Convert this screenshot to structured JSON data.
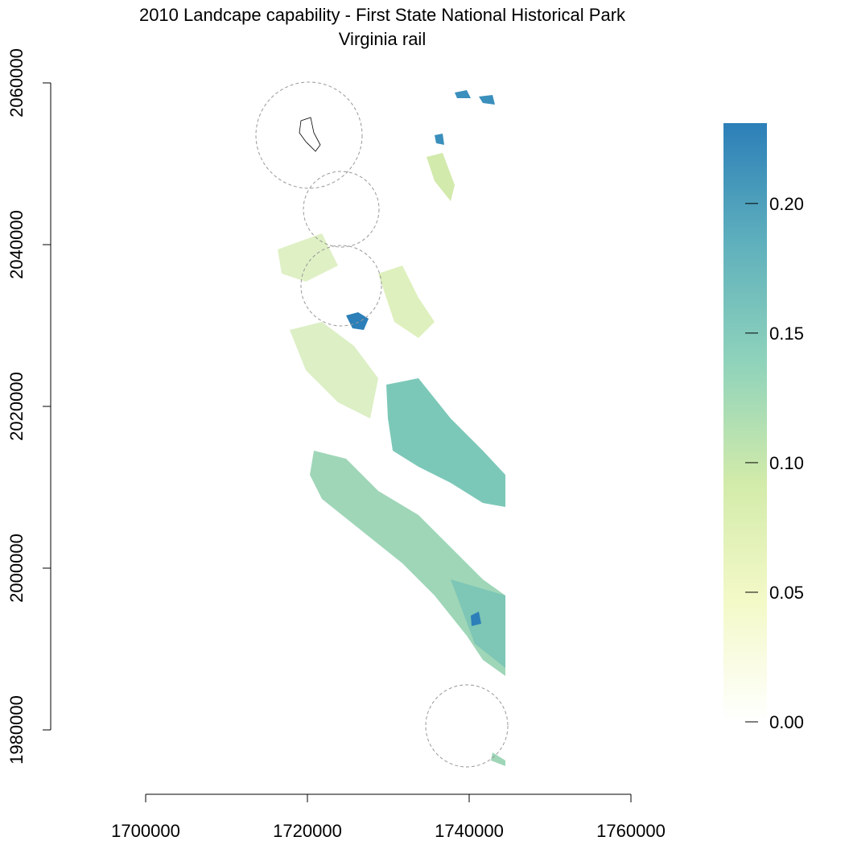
{
  "title": "2010 Landcape capability - First State National Historical Park",
  "subtitle": "Virginia rail",
  "x_axis": {
    "lim": [
      1700000,
      1760000
    ],
    "ticks": [
      1700000,
      1720000,
      1740000,
      1760000
    ]
  },
  "y_axis": {
    "lim": [
      1980000,
      2060000
    ],
    "ticks": [
      1980000,
      2000000,
      2020000,
      2040000,
      2060000
    ]
  },
  "legend": {
    "lim": [
      0,
      0.231
    ],
    "colors": [
      "#ffffff",
      "#f4f9c8",
      "#d2ebaa",
      "#8fd3bb",
      "#5fb0bd",
      "#2c7fb8"
    ],
    "ticks": [
      {
        "value": 0,
        "label": "0.00"
      },
      {
        "value": 0.05,
        "label": "0.05"
      },
      {
        "value": 0.1,
        "label": "0.10"
      },
      {
        "value": 0.15,
        "label": "0.15"
      },
      {
        "value": 0.2,
        "label": "0.20"
      }
    ]
  }
}
